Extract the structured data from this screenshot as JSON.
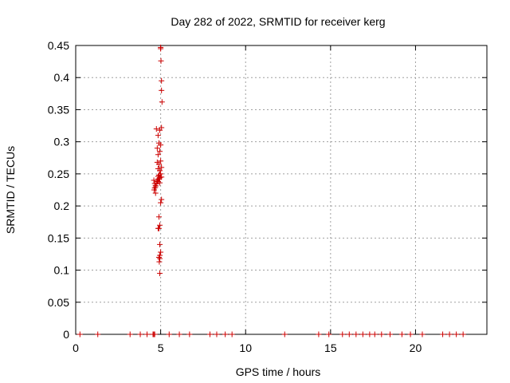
{
  "chart_data": {
    "type": "scatter",
    "title": "Day 282 of 2022, SRMTID for receiver kerg",
    "xlabel": "GPS time / hours",
    "ylabel": "SRMTID / TECUs",
    "xlim": [
      0,
      24.2
    ],
    "ylim": [
      0,
      0.45
    ],
    "xticks": [
      0,
      5,
      10,
      15,
      20
    ],
    "xtick_labels": [
      "0",
      "5",
      "10",
      "15",
      "20"
    ],
    "yticks": [
      0,
      0.05,
      0.1,
      0.15,
      0.2,
      0.25,
      0.3,
      0.35,
      0.4,
      0.45
    ],
    "ytick_labels": [
      "0",
      "0.05",
      "0.1",
      "0.15",
      "0.2",
      "0.25",
      "0.3",
      "0.35",
      "0.4",
      "0.45"
    ],
    "grid": true,
    "marker": "+",
    "marker_color": "#cc0000",
    "series": [
      {
        "name": "SRMTID",
        "x": [
          0.25,
          1.3,
          3.2,
          3.8,
          4.2,
          4.55,
          4.6,
          4.65,
          5.5,
          6.1,
          6.7,
          7.9,
          8.3,
          8.8,
          9.2,
          12.3,
          14.3,
          14.9,
          15.7,
          16.1,
          16.5,
          16.9,
          17.3,
          17.6,
          18.0,
          18.5,
          19.2,
          19.7,
          20.4,
          21.6,
          22.0,
          22.4,
          22.8,
          5.0,
          5.0,
          5.02,
          5.05,
          5.05,
          5.08,
          4.75,
          4.95,
          5.05,
          4.85,
          4.9,
          5.0,
          4.8,
          4.95,
          4.85,
          5.0,
          4.8,
          4.9,
          5.05,
          4.85,
          4.95,
          5.0,
          4.9,
          4.85,
          4.95,
          4.9,
          4.8,
          4.85,
          4.95,
          5.05,
          4.6,
          4.65,
          4.7,
          4.65,
          4.62,
          4.7,
          4.7,
          4.75,
          4.8,
          4.85,
          5.05,
          5.0,
          4.9,
          4.95,
          4.85,
          4.95,
          5.0,
          4.95,
          4.9,
          4.95,
          4.92,
          4.95,
          4.9
        ],
        "y": [
          0,
          0,
          0,
          0,
          0,
          0,
          0,
          0,
          0,
          0,
          0,
          0,
          0,
          0,
          0,
          0,
          0,
          0,
          0,
          0,
          0,
          0,
          0,
          0,
          0,
          0,
          0,
          0,
          0,
          0,
          0,
          0,
          0,
          0.447,
          0.445,
          0.426,
          0.395,
          0.38,
          0.362,
          0.32,
          0.318,
          0.322,
          0.31,
          0.298,
          0.295,
          0.29,
          0.285,
          0.28,
          0.27,
          0.268,
          0.265,
          0.26,
          0.258,
          0.255,
          0.25,
          0.248,
          0.246,
          0.244,
          0.242,
          0.24,
          0.238,
          0.236,
          0.245,
          0.24,
          0.235,
          0.232,
          0.228,
          0.225,
          0.23,
          0.22,
          0.235,
          0.238,
          0.242,
          0.21,
          0.205,
          0.183,
          0.17,
          0.165,
          0.14,
          0.128,
          0.123,
          0.12,
          0.118,
          0.113,
          0.095,
          0.165
        ]
      }
    ]
  }
}
